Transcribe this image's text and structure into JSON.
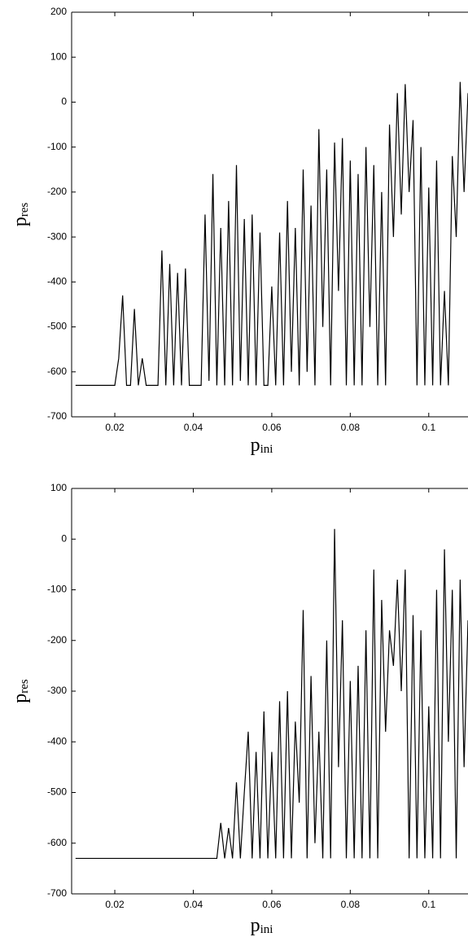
{
  "chart_data": [
    {
      "type": "line",
      "xlabel": "p",
      "xlabel_sub": "ini",
      "ylabel": "p",
      "ylabel_sub": "res",
      "xlim": [
        0.009,
        0.11
      ],
      "ylim": [
        -700,
        200
      ],
      "xticks": [
        0.02,
        0.04,
        0.06,
        0.08,
        0.1
      ],
      "yticks": [
        200,
        100,
        0,
        -100,
        -200,
        -300,
        -400,
        -500,
        -600,
        -700
      ],
      "series": [
        {
          "color": "#000000",
          "x": [
            0.01,
            0.011,
            0.012,
            0.013,
            0.014,
            0.015,
            0.016,
            0.017,
            0.018,
            0.019,
            0.02,
            0.021,
            0.022,
            0.023,
            0.024,
            0.025,
            0.026,
            0.027,
            0.028,
            0.029,
            0.03,
            0.031,
            0.032,
            0.033,
            0.034,
            0.035,
            0.036,
            0.037,
            0.038,
            0.039,
            0.04,
            0.041,
            0.042,
            0.043,
            0.044,
            0.045,
            0.046,
            0.047,
            0.048,
            0.049,
            0.05,
            0.051,
            0.052,
            0.053,
            0.054,
            0.055,
            0.056,
            0.057,
            0.058,
            0.059,
            0.06,
            0.061,
            0.062,
            0.063,
            0.064,
            0.065,
            0.066,
            0.067,
            0.068,
            0.069,
            0.07,
            0.071,
            0.072,
            0.073,
            0.074,
            0.075,
            0.076,
            0.077,
            0.078,
            0.079,
            0.08,
            0.081,
            0.082,
            0.083,
            0.084,
            0.085,
            0.086,
            0.087,
            0.088,
            0.089,
            0.09,
            0.091,
            0.092,
            0.093,
            0.094,
            0.095,
            0.096,
            0.097,
            0.098,
            0.099,
            0.1,
            0.101,
            0.102,
            0.103,
            0.104,
            0.105,
            0.106,
            0.107,
            0.108,
            0.109,
            0.11
          ],
          "values": [
            -630,
            -630,
            -630,
            -630,
            -630,
            -630,
            -630,
            -630,
            -630,
            -630,
            -630,
            -570,
            -430,
            -630,
            -630,
            -460,
            -630,
            -570,
            -630,
            -630,
            -630,
            -630,
            -330,
            -630,
            -360,
            -630,
            -380,
            -630,
            -370,
            -630,
            -630,
            -630,
            -630,
            -250,
            -620,
            -160,
            -630,
            -280,
            -630,
            -220,
            -630,
            -140,
            -620,
            -260,
            -630,
            -250,
            -630,
            -290,
            -630,
            -630,
            -410,
            -630,
            -290,
            -630,
            -220,
            -600,
            -280,
            -630,
            -150,
            -600,
            -230,
            -630,
            -60,
            -500,
            -150,
            -630,
            -90,
            -420,
            -80,
            -630,
            -130,
            -630,
            -160,
            -630,
            -100,
            -500,
            -140,
            -630,
            -200,
            -630,
            -50,
            -300,
            20,
            -250,
            40,
            -200,
            -40,
            -630,
            -100,
            -630,
            -190,
            -630,
            -130,
            -630,
            -420,
            -630,
            -120,
            -300,
            45,
            -200,
            20
          ]
        }
      ]
    },
    {
      "type": "line",
      "xlabel": "p",
      "xlabel_sub": "ini",
      "ylabel": "p",
      "ylabel_sub": "res",
      "xlim": [
        0.009,
        0.11
      ],
      "ylim": [
        -700,
        100
      ],
      "xticks": [
        0.02,
        0.04,
        0.06,
        0.08,
        0.1
      ],
      "yticks": [
        100,
        0,
        -100,
        -200,
        -300,
        -400,
        -500,
        -600,
        -700
      ],
      "series": [
        {
          "color": "#000000",
          "x": [
            0.01,
            0.011,
            0.012,
            0.013,
            0.014,
            0.015,
            0.016,
            0.017,
            0.018,
            0.019,
            0.02,
            0.021,
            0.022,
            0.023,
            0.024,
            0.025,
            0.026,
            0.027,
            0.028,
            0.029,
            0.03,
            0.031,
            0.032,
            0.033,
            0.034,
            0.035,
            0.036,
            0.037,
            0.038,
            0.039,
            0.04,
            0.041,
            0.042,
            0.043,
            0.044,
            0.045,
            0.046,
            0.047,
            0.048,
            0.049,
            0.05,
            0.051,
            0.052,
            0.053,
            0.054,
            0.055,
            0.056,
            0.057,
            0.058,
            0.059,
            0.06,
            0.061,
            0.062,
            0.063,
            0.064,
            0.065,
            0.066,
            0.067,
            0.068,
            0.069,
            0.07,
            0.071,
            0.072,
            0.073,
            0.074,
            0.075,
            0.076,
            0.077,
            0.078,
            0.079,
            0.08,
            0.081,
            0.082,
            0.083,
            0.084,
            0.085,
            0.086,
            0.087,
            0.088,
            0.089,
            0.09,
            0.091,
            0.092,
            0.093,
            0.094,
            0.095,
            0.096,
            0.097,
            0.098,
            0.099,
            0.1,
            0.101,
            0.102,
            0.103,
            0.104,
            0.105,
            0.106,
            0.107,
            0.108,
            0.109,
            0.11
          ],
          "values": [
            -630,
            -630,
            -630,
            -630,
            -630,
            -630,
            -630,
            -630,
            -630,
            -630,
            -630,
            -630,
            -630,
            -630,
            -630,
            -630,
            -630,
            -630,
            -630,
            -630,
            -630,
            -630,
            -630,
            -630,
            -630,
            -630,
            -630,
            -630,
            -630,
            -630,
            -630,
            -630,
            -630,
            -630,
            -630,
            -630,
            -630,
            -560,
            -630,
            -570,
            -630,
            -480,
            -630,
            -500,
            -380,
            -630,
            -420,
            -630,
            -340,
            -630,
            -420,
            -630,
            -320,
            -630,
            -300,
            -630,
            -360,
            -520,
            -140,
            -630,
            -270,
            -600,
            -380,
            -630,
            -200,
            -630,
            20,
            -450,
            -160,
            -630,
            -280,
            -630,
            -250,
            -630,
            -180,
            -630,
            -60,
            -630,
            -120,
            -380,
            -180,
            -250,
            -80,
            -300,
            -60,
            -630,
            -150,
            -630,
            -180,
            -630,
            -330,
            -630,
            -100,
            -630,
            -20,
            -400,
            -100,
            -630,
            -80,
            -450,
            -160
          ]
        }
      ]
    }
  ]
}
